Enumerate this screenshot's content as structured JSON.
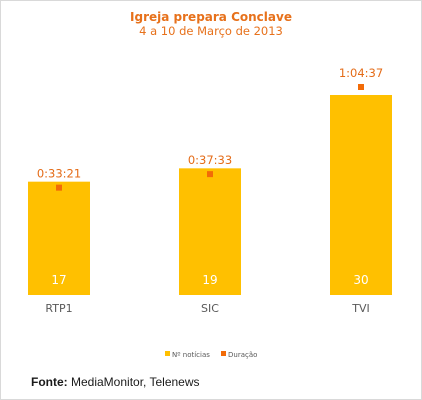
{
  "chart_data": {
    "type": "bar",
    "title": "Igreja prepara Conclave",
    "subtitle": "4 a 10 de Março de 2013",
    "categories": [
      "RTP1",
      "SIC",
      "TVI"
    ],
    "series": [
      {
        "name": "Nº notícias",
        "type": "bar",
        "values": [
          17,
          19,
          30
        ],
        "labels": [
          "17",
          "19",
          "30"
        ],
        "color": "#ffc000"
      },
      {
        "name": "Duração",
        "type": "marker",
        "values": [
          "0:33:21",
          "0:37:33",
          "1:04:37"
        ],
        "labels": [
          "0:33:21",
          "0:37:33",
          "1:04:37"
        ],
        "color": "#f26b07"
      }
    ],
    "ylim": [
      0,
      36
    ],
    "grid": false,
    "legend_position": "bottom"
  },
  "source": {
    "label": "Fonte:",
    "text": "MediaMonitor, Telenews"
  }
}
